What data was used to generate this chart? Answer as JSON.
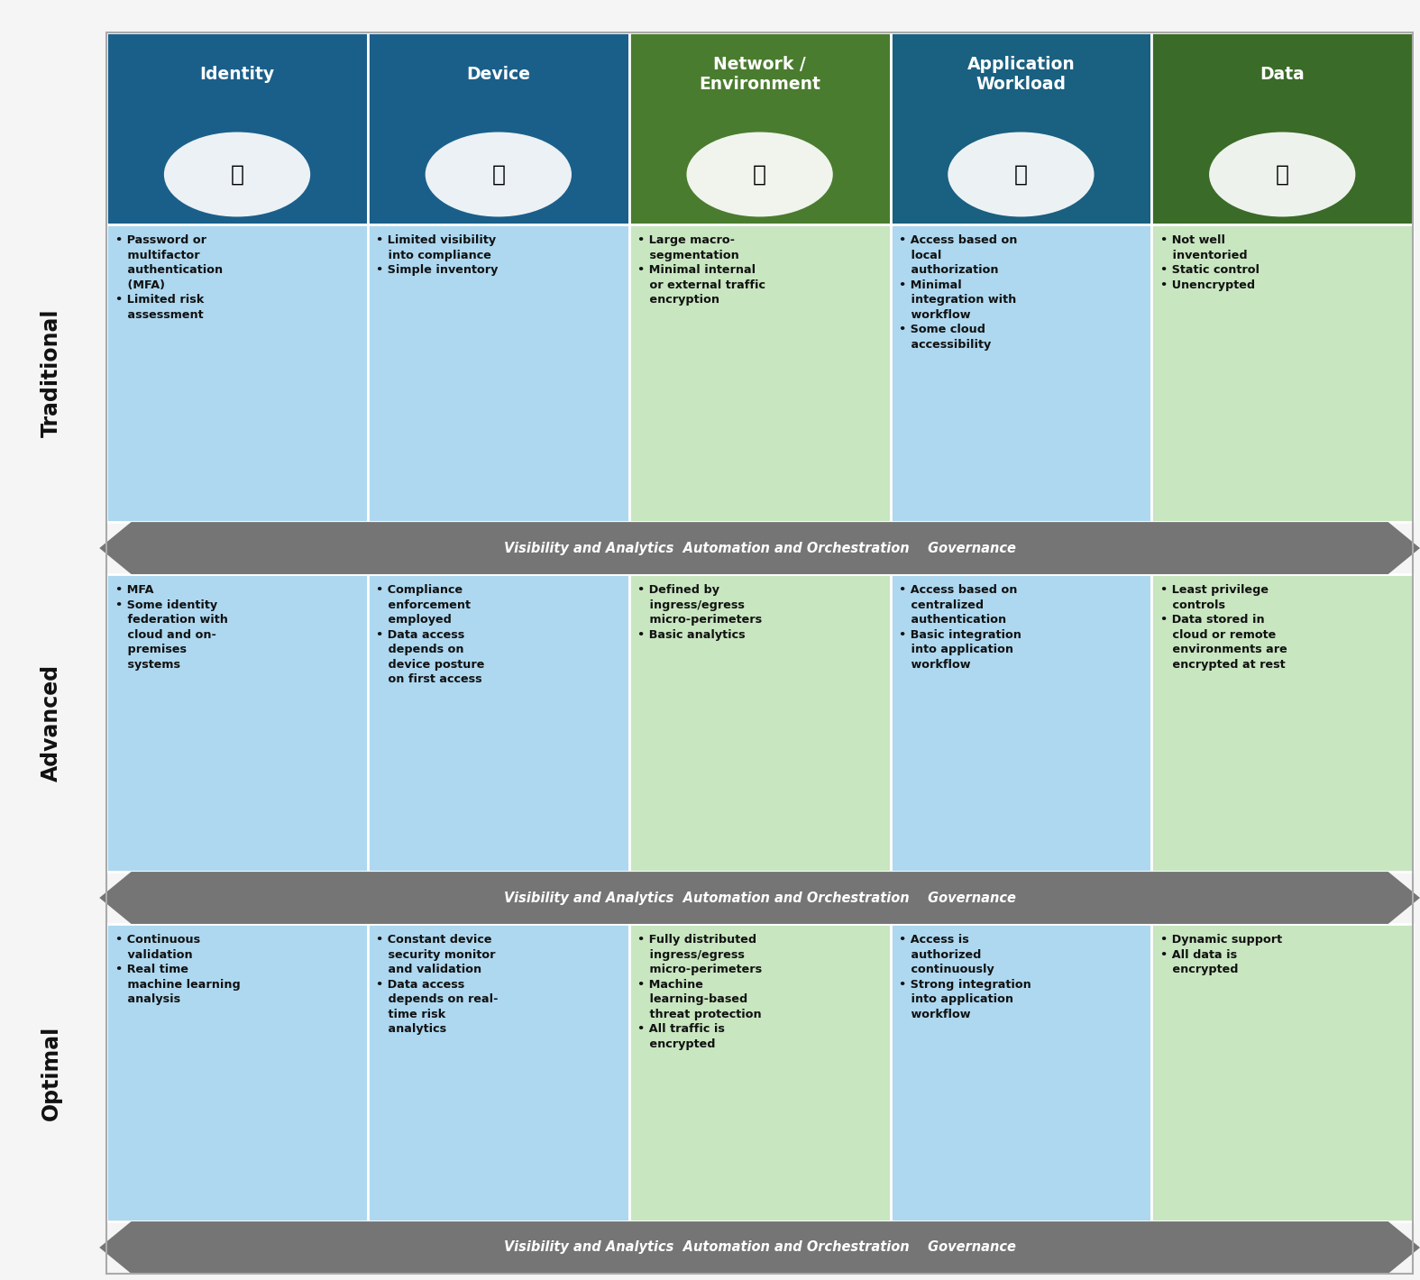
{
  "background_color": "#f5f5f5",
  "col_headers": [
    "Identity",
    "Device",
    "Network /\nEnvironment",
    "Application\nWorkload",
    "Data"
  ],
  "col_header_colors": [
    "#1a5f8a",
    "#1a5f8a",
    "#4a7c2f",
    "#1a6080",
    "#3a6b28"
  ],
  "col_header_colors2": [
    "#1d6fa0",
    "#1d6fa0",
    "#5a8f35",
    "#1d7095",
    "#456030"
  ],
  "row_labels": [
    "Traditional",
    "Advanced",
    "Optimal"
  ],
  "arrow_color": "#757575",
  "arrow_text": "Visibility and Analytics  Automation and Orchestration    Governance",
  "header_text_color": "#ffffff",
  "cell_text_color": "#000000",
  "blue_cell": "#add8f0",
  "green_cell": "#c8e6c0",
  "icon_symbols": [
    "•—○",
    "□",
    "○",
    "□",
    "○"
  ],
  "cells": {
    "traditional": [
      "• Password or\n   multifactor\n   authentication\n   (MFA)\n• Limited risk\n   assessment",
      "• Limited visibility\n   into compliance\n• Simple inventory",
      "• Large macro-\n   segmentation\n• Minimal internal\n   or external traffic\n   encryption",
      "• Access based on\n   local\n   authorization\n• Minimal\n   integration with\n   workflow\n• Some cloud\n   accessibility",
      "• Not well\n   inventoried\n• Static control\n• Unencrypted"
    ],
    "advanced": [
      "• MFA\n• Some identity\n   federation with\n   cloud and on-\n   premises\n   systems",
      "• Compliance\n   enforcement\n   employed\n• Data access\n   depends on\n   device posture\n   on first access",
      "• Defined by\n   ingress/egress\n   micro-perimeters\n• Basic analytics",
      "• Access based on\n   centralized\n   authentication\n• Basic integration\n   into application\n   workflow",
      "• Least privilege\n   controls\n• Data stored in\n   cloud or remote\n   environments are\n   encrypted at rest"
    ],
    "optimal": [
      "• Continuous\n   validation\n• Real time\n   machine learning\n   analysis",
      "• Constant device\n   security monitor\n   and validation\n• Data access\n   depends on real-\n   time risk\n   analytics",
      "• Fully distributed\n   ingress/egress\n   micro-perimeters\n• Machine\n   learning-based\n   threat protection\n• All traffic is\n   encrypted",
      "• Access is\n   authorized\n   continuously\n• Strong integration\n   into application\n   workflow",
      "• Dynamic support\n• All data is\n   encrypted"
    ]
  },
  "fig_width": 15.75,
  "fig_height": 14.2
}
